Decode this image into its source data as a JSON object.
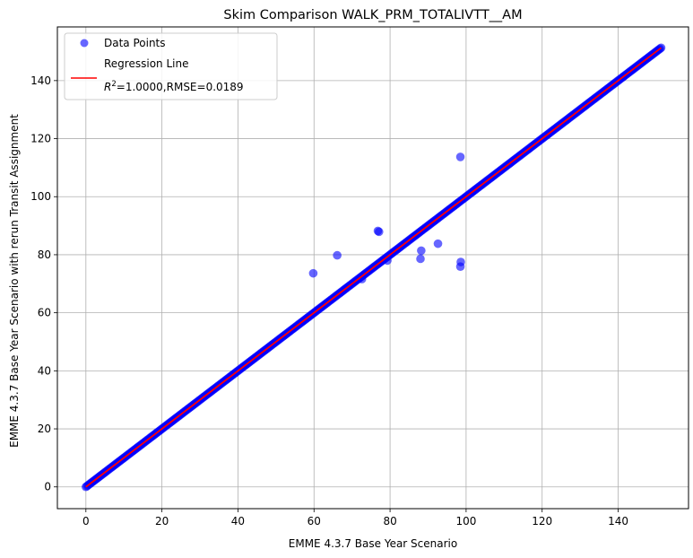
{
  "chart_data": {
    "type": "scatter",
    "title": "Skim Comparison WALK_PRM_TOTALIVTT__AM",
    "xlabel": "EMME 4.3.7 Base Year Scenario",
    "ylabel": "EMME 4.3.7 Base Year Scenario with rerun Transit Assignment",
    "xlim": [
      -7.5,
      158.5
    ],
    "ylim": [
      -7.5,
      158.5
    ],
    "xticks": [
      0,
      20,
      40,
      60,
      80,
      100,
      120,
      140
    ],
    "yticks": [
      0,
      20,
      40,
      60,
      80,
      100,
      120,
      140
    ],
    "grid": true,
    "legend_position": "upper-left",
    "series": [
      {
        "name": "Data Points",
        "kind": "scatter",
        "color": "#0000ff",
        "alpha": 0.6,
        "diagonal_range": [
          0,
          151.3
        ],
        "outliers": [
          {
            "x": 59.8,
            "y": 73.6
          },
          {
            "x": 66.1,
            "y": 79.8
          },
          {
            "x": 72.6,
            "y": 71.6
          },
          {
            "x": 76.8,
            "y": 88.2
          },
          {
            "x": 77.1,
            "y": 87.9
          },
          {
            "x": 79.3,
            "y": 78.0
          },
          {
            "x": 88.2,
            "y": 81.4
          },
          {
            "x": 88.0,
            "y": 78.6
          },
          {
            "x": 92.6,
            "y": 83.8
          },
          {
            "x": 98.5,
            "y": 113.7
          },
          {
            "x": 98.6,
            "y": 77.5
          },
          {
            "x": 98.5,
            "y": 75.9
          }
        ]
      },
      {
        "name": "Regression Line",
        "kind": "line",
        "color": "#ff0000",
        "x": [
          0,
          151.3
        ],
        "y": [
          0,
          151.3
        ]
      }
    ],
    "legend": {
      "points_label": "Data Points",
      "line_label_1": "Regression Line",
      "r2_symbol": "R",
      "r2_sup": "2",
      "r2_text": "=1.0000,RMSE=0.0189"
    }
  }
}
